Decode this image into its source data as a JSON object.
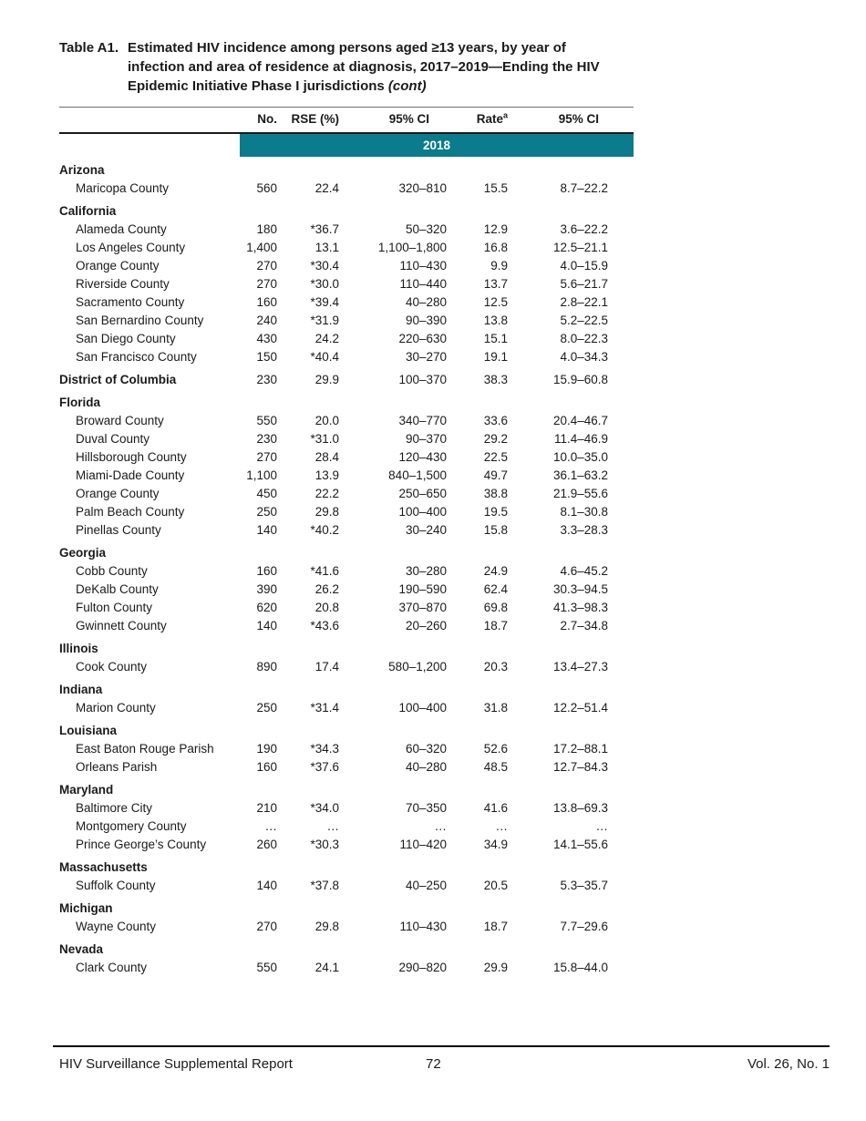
{
  "title": {
    "label": "Table A1.",
    "line1": "Estimated HIV incidence among persons aged ≥13 years, by year of",
    "line2": "infection and area of residence at diagnosis, 2017–2019—Ending the HIV",
    "line3": "Epidemic Initiative Phase I jurisdictions",
    "cont": "(cont)"
  },
  "table": {
    "columns": [
      "No.",
      "RSE (%)",
      "95% CI",
      "Rate",
      "95% CI"
    ],
    "rate_footnote_marker": "a",
    "year": "2018",
    "groups": [
      {
        "state": "Arizona",
        "rows": [
          {
            "name": "Maricopa County",
            "no": "560",
            "rse": "22.4",
            "ci": "320–810",
            "rate": "15.5",
            "rate_ci": "8.7–22.2"
          }
        ]
      },
      {
        "state": "California",
        "rows": [
          {
            "name": "Alameda County",
            "no": "180",
            "rse": "*36.7",
            "ci": "50–320",
            "rate": "12.9",
            "rate_ci": "3.6–22.2"
          },
          {
            "name": "Los Angeles County",
            "no": "1,400",
            "rse": "13.1",
            "ci": "1,100–1,800",
            "rate": "16.8",
            "rate_ci": "12.5–21.1"
          },
          {
            "name": "Orange County",
            "no": "270",
            "rse": "*30.4",
            "ci": "110–430",
            "rate": "9.9",
            "rate_ci": "4.0–15.9"
          },
          {
            "name": "Riverside County",
            "no": "270",
            "rse": "*30.0",
            "ci": "110–440",
            "rate": "13.7",
            "rate_ci": "5.6–21.7"
          },
          {
            "name": "Sacramento County",
            "no": "160",
            "rse": "*39.4",
            "ci": "40–280",
            "rate": "12.5",
            "rate_ci": "2.8–22.1"
          },
          {
            "name": "San Bernardino County",
            "no": "240",
            "rse": "*31.9",
            "ci": "90–390",
            "rate": "13.8",
            "rate_ci": "5.2–22.5"
          },
          {
            "name": "San Diego County",
            "no": "430",
            "rse": "24.2",
            "ci": "220–630",
            "rate": "15.1",
            "rate_ci": "8.0–22.3"
          },
          {
            "name": "San Francisco County",
            "no": "150",
            "rse": "*40.4",
            "ci": "30–270",
            "rate": "19.1",
            "rate_ci": "4.0–34.3"
          }
        ]
      },
      {
        "state": "District of Columbia",
        "values": {
          "no": "230",
          "rse": "29.9",
          "ci": "100–370",
          "rate": "38.3",
          "rate_ci": "15.9–60.8"
        },
        "rows": []
      },
      {
        "state": "Florida",
        "rows": [
          {
            "name": "Broward County",
            "no": "550",
            "rse": "20.0",
            "ci": "340–770",
            "rate": "33.6",
            "rate_ci": "20.4–46.7"
          },
          {
            "name": "Duval County",
            "no": "230",
            "rse": "*31.0",
            "ci": "90–370",
            "rate": "29.2",
            "rate_ci": "11.4–46.9"
          },
          {
            "name": "Hillsborough County",
            "no": "270",
            "rse": "28.4",
            "ci": "120–430",
            "rate": "22.5",
            "rate_ci": "10.0–35.0"
          },
          {
            "name": "Miami-Dade County",
            "no": "1,100",
            "rse": "13.9",
            "ci": "840–1,500",
            "rate": "49.7",
            "rate_ci": "36.1–63.2"
          },
          {
            "name": "Orange County",
            "no": "450",
            "rse": "22.2",
            "ci": "250–650",
            "rate": "38.8",
            "rate_ci": "21.9–55.6"
          },
          {
            "name": "Palm Beach County",
            "no": "250",
            "rse": "29.8",
            "ci": "100–400",
            "rate": "19.5",
            "rate_ci": "8.1–30.8"
          },
          {
            "name": "Pinellas County",
            "no": "140",
            "rse": "*40.2",
            "ci": "30–240",
            "rate": "15.8",
            "rate_ci": "3.3–28.3"
          }
        ]
      },
      {
        "state": "Georgia",
        "rows": [
          {
            "name": "Cobb County",
            "no": "160",
            "rse": "*41.6",
            "ci": "30–280",
            "rate": "24.9",
            "rate_ci": "4.6–45.2"
          },
          {
            "name": "DeKalb County",
            "no": "390",
            "rse": "26.2",
            "ci": "190–590",
            "rate": "62.4",
            "rate_ci": "30.3–94.5"
          },
          {
            "name": "Fulton County",
            "no": "620",
            "rse": "20.8",
            "ci": "370–870",
            "rate": "69.8",
            "rate_ci": "41.3–98.3"
          },
          {
            "name": "Gwinnett County",
            "no": "140",
            "rse": "*43.6",
            "ci": "20–260",
            "rate": "18.7",
            "rate_ci": "2.7–34.8"
          }
        ]
      },
      {
        "state": "Illinois",
        "rows": [
          {
            "name": "Cook County",
            "no": "890",
            "rse": "17.4",
            "ci": "580–1,200",
            "rate": "20.3",
            "rate_ci": "13.4–27.3"
          }
        ]
      },
      {
        "state": "Indiana",
        "rows": [
          {
            "name": "Marion County",
            "no": "250",
            "rse": "*31.4",
            "ci": "100–400",
            "rate": "31.8",
            "rate_ci": "12.2–51.4"
          }
        ]
      },
      {
        "state": "Louisiana",
        "rows": [
          {
            "name": "East Baton Rouge Parish",
            "no": "190",
            "rse": "*34.3",
            "ci": "60–320",
            "rate": "52.6",
            "rate_ci": "17.2–88.1"
          },
          {
            "name": "Orleans Parish",
            "no": "160",
            "rse": "*37.6",
            "ci": "40–280",
            "rate": "48.5",
            "rate_ci": "12.7–84.3"
          }
        ]
      },
      {
        "state": "Maryland",
        "rows": [
          {
            "name": "Baltimore City",
            "no": "210",
            "rse": "*34.0",
            "ci": "70–350",
            "rate": "41.6",
            "rate_ci": "13.8–69.3"
          },
          {
            "name": "Montgomery County",
            "no": "…",
            "rse": "…",
            "ci": "…",
            "rate": "…",
            "rate_ci": "…"
          },
          {
            "name": "Prince George’s County",
            "no": "260",
            "rse": "*30.3",
            "ci": "110–420",
            "rate": "34.9",
            "rate_ci": "14.1–55.6"
          }
        ]
      },
      {
        "state": "Massachusetts",
        "rows": [
          {
            "name": "Suffolk County",
            "no": "140",
            "rse": "*37.8",
            "ci": "40–250",
            "rate": "20.5",
            "rate_ci": "5.3–35.7"
          }
        ]
      },
      {
        "state": "Michigan",
        "rows": [
          {
            "name": "Wayne County",
            "no": "270",
            "rse": "29.8",
            "ci": "110–430",
            "rate": "18.7",
            "rate_ci": "7.7–29.6"
          }
        ]
      },
      {
        "state": "Nevada",
        "rows": [
          {
            "name": "Clark County",
            "no": "550",
            "rse": "24.1",
            "ci": "290–820",
            "rate": "29.9",
            "rate_ci": "15.8–44.0"
          }
        ]
      }
    ]
  },
  "footer": {
    "left": "HIV Surveillance Supplemental Report",
    "page": "72",
    "right": "Vol. 26, No. 1"
  },
  "colors": {
    "banner_teal": "#0c7b8b",
    "banner_text": "#ffffff"
  }
}
